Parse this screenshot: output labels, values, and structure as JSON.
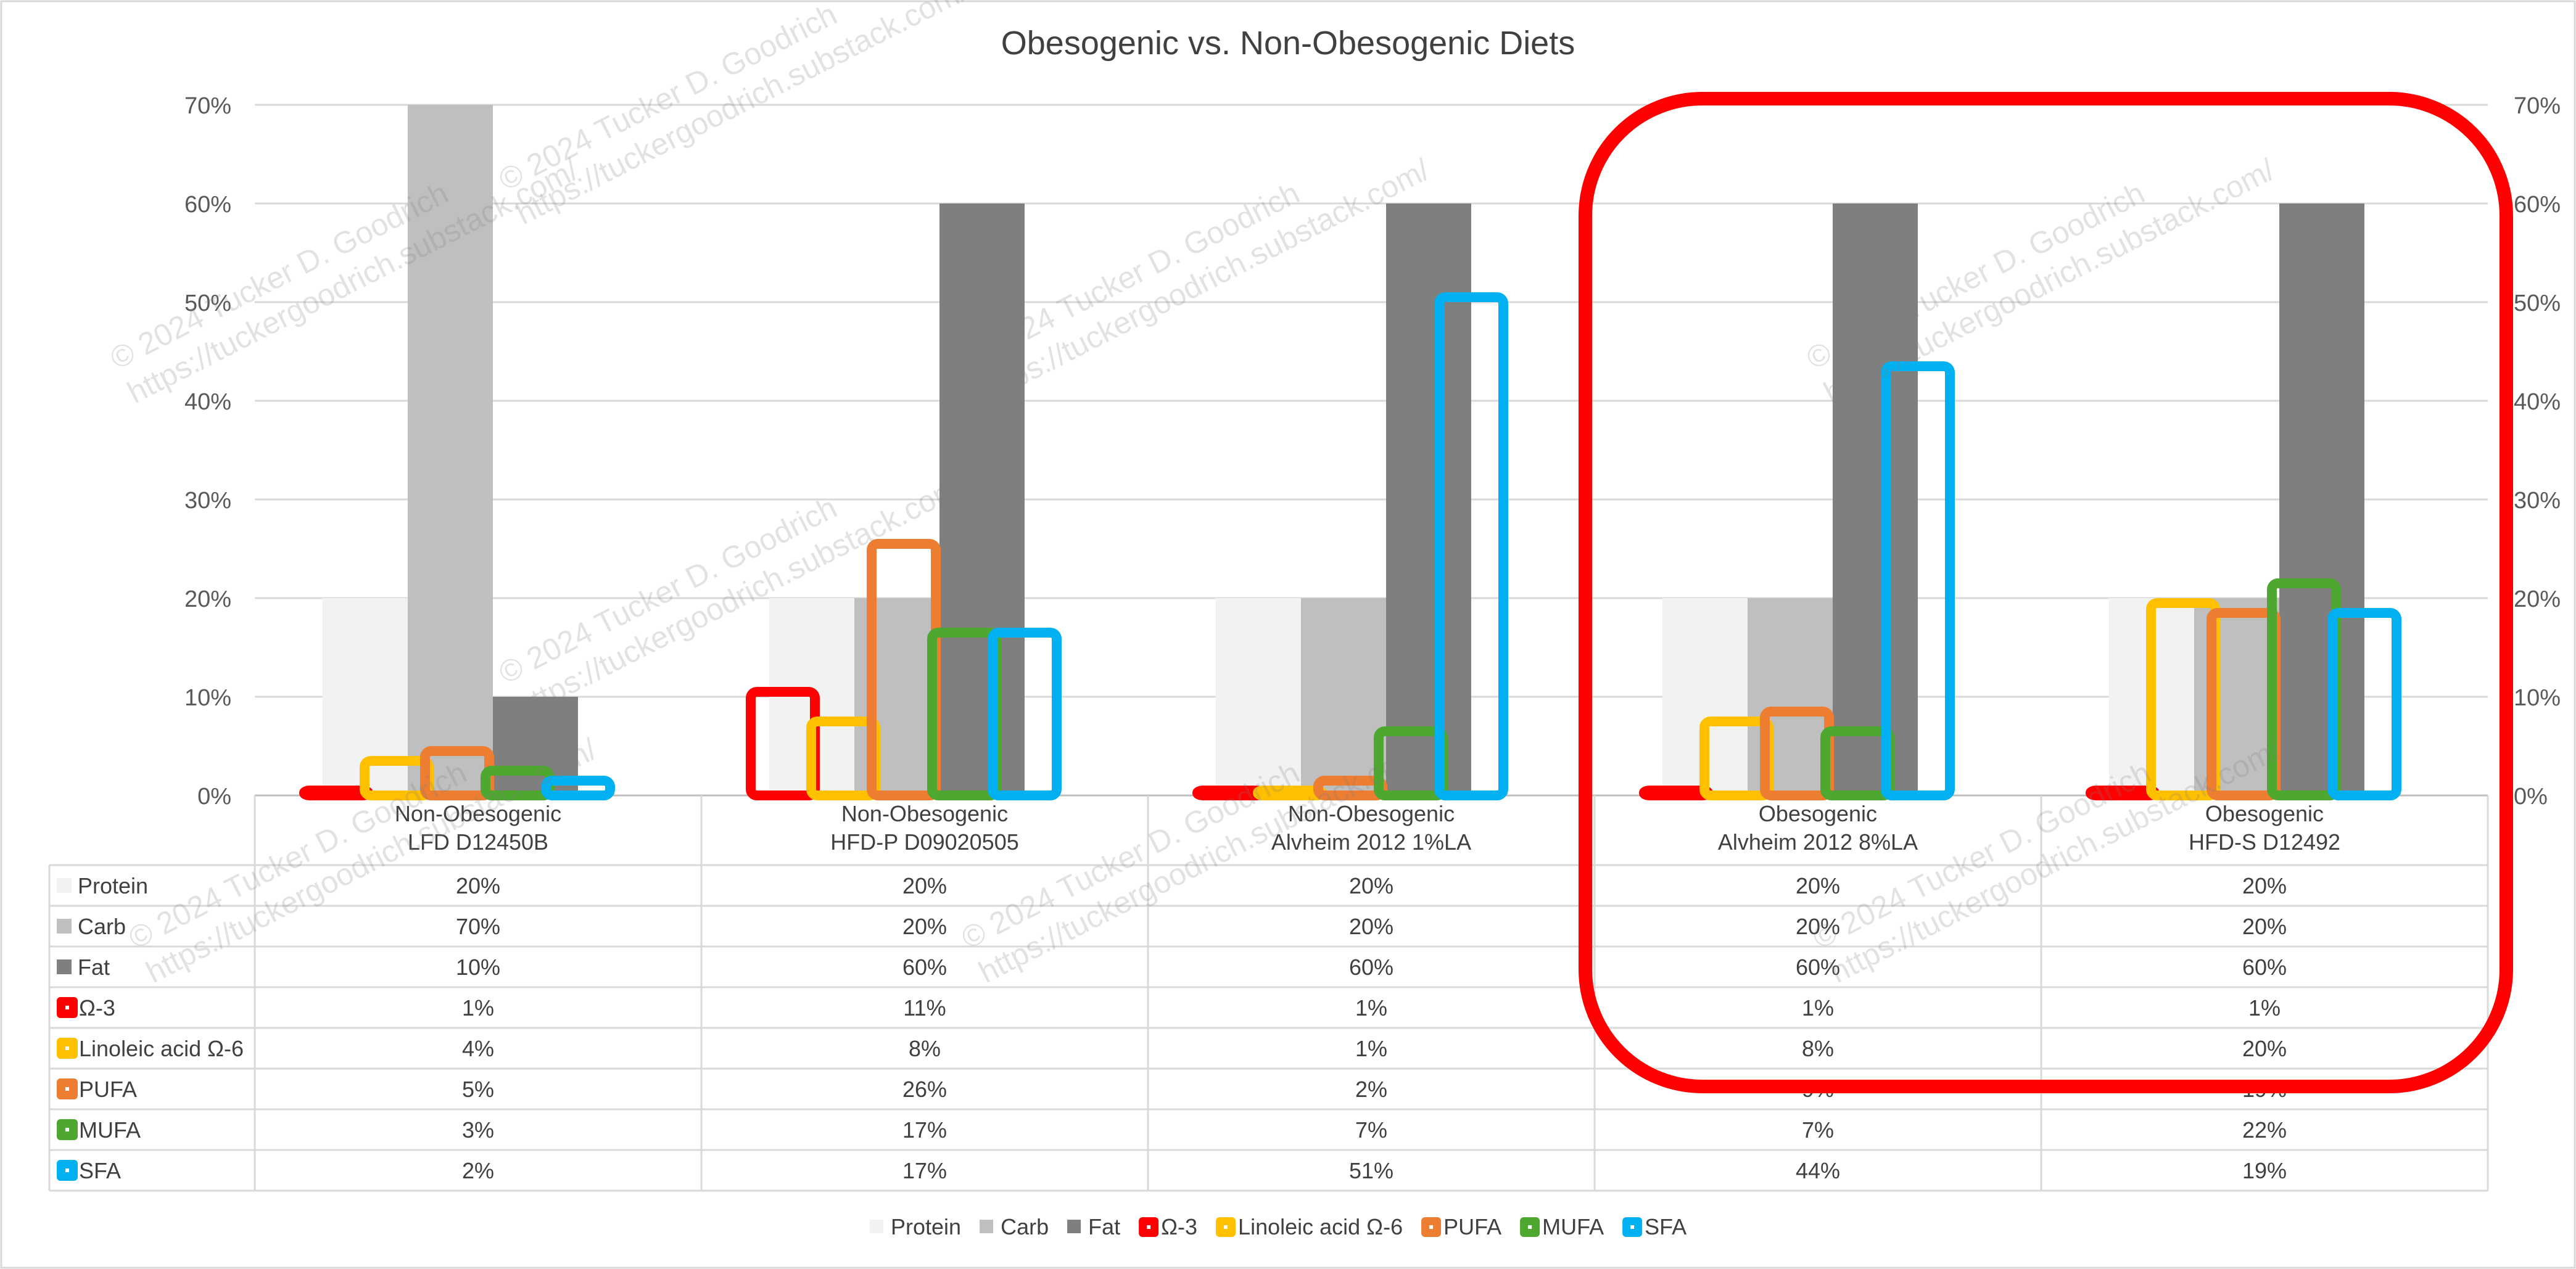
{
  "chart_data": {
    "type": "bar",
    "title": "Obesogenic vs. Non-Obesogenic Diets",
    "ylim": [
      0,
      70
    ],
    "y_ticks": [
      "0%",
      "10%",
      "20%",
      "30%",
      "40%",
      "50%",
      "60%",
      "70%"
    ],
    "y_axis_left": true,
    "y_axis_right": true,
    "grid": true,
    "legend": "bottom",
    "data_table": true,
    "categories": [
      "Non-Obesogenic\nLFD D12450B",
      "Non-Obesogenic\nHFD-P D09020505",
      "Non-Obesogenic\nAlvheim 2012 1%LA",
      "Obesogenic\nAlvheim 2012 8%LA",
      "Obesogenic\nHFD-S D12492"
    ],
    "series": [
      {
        "name": "Protein",
        "values": [
          20,
          20,
          20,
          20,
          20
        ],
        "labels": [
          "20%",
          "20%",
          "20%",
          "20%",
          "20%"
        ],
        "color": "#f2f2f2",
        "style": "filled",
        "group": "macro"
      },
      {
        "name": "Carb",
        "values": [
          70,
          20,
          20,
          20,
          20
        ],
        "labels": [
          "70%",
          "20%",
          "20%",
          "20%",
          "20%"
        ],
        "color": "#bfbfbf",
        "style": "filled",
        "group": "macro"
      },
      {
        "name": "Fat",
        "values": [
          10,
          60,
          60,
          60,
          60
        ],
        "labels": [
          "10%",
          "60%",
          "60%",
          "60%",
          "60%"
        ],
        "color": "#7f7f7f",
        "style": "filled",
        "group": "macro"
      },
      {
        "name": "Ω-3",
        "values": [
          1,
          11,
          1,
          1,
          1
        ],
        "labels": [
          "1%",
          "11%",
          "1%",
          "1%",
          "1%"
        ],
        "color": "#ff0000",
        "style": "outline",
        "group": "fatty"
      },
      {
        "name": "Linoleic acid Ω-6",
        "values": [
          4,
          8,
          1,
          8,
          20
        ],
        "labels": [
          "4%",
          "8%",
          "1%",
          "8%",
          "20%"
        ],
        "color": "#ffc000",
        "style": "outline",
        "group": "fatty"
      },
      {
        "name": "PUFA",
        "values": [
          5,
          26,
          2,
          9,
          19
        ],
        "labels": [
          "5%",
          "26%",
          "2%",
          "9%",
          "19%"
        ],
        "color": "#ed7d31",
        "style": "outline",
        "group": "fatty"
      },
      {
        "name": "MUFA",
        "values": [
          3,
          17,
          7,
          7,
          22
        ],
        "labels": [
          "3%",
          "17%",
          "7%",
          "7%",
          "22%"
        ],
        "color": "#4ea72e",
        "style": "outline",
        "group": "fatty"
      },
      {
        "name": "SFA",
        "values": [
          2,
          17,
          51,
          44,
          19
        ],
        "labels": [
          "2%",
          "17%",
          "51%",
          "44%",
          "19%"
        ],
        "color": "#00b0f0",
        "style": "outline",
        "group": "fatty"
      }
    ],
    "highlight": {
      "categories": [
        3,
        4
      ],
      "color": "#ff0000"
    },
    "watermark_lines": [
      "© 2024 Tucker D. Goodrich",
      "https://tuckergoodrich.substack.com/"
    ]
  }
}
